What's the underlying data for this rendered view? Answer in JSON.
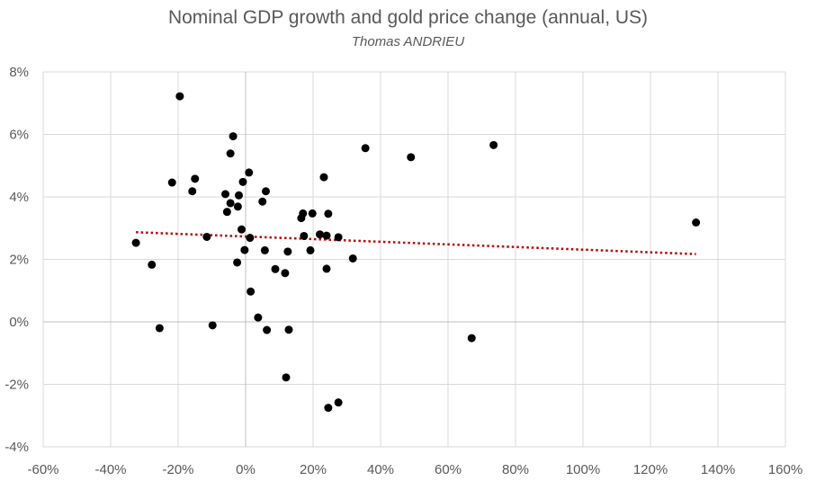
{
  "chart_data": {
    "type": "scatter",
    "title": "Nominal GDP growth and gold price change (annual, US)",
    "subtitle": "Thomas ANDRIEU",
    "xlabel": "",
    "ylabel": "",
    "xlim": [
      -0.6,
      1.6
    ],
    "ylim": [
      -0.04,
      0.08
    ],
    "x_ticks": [
      -0.6,
      -0.4,
      -0.2,
      0,
      0.2,
      0.4,
      0.6,
      0.8,
      1.0,
      1.2,
      1.4,
      1.6
    ],
    "x_tick_labels": [
      "-60%",
      "-40%",
      "-20%",
      "0%",
      "20%",
      "40%",
      "60%",
      "80%",
      "100%",
      "120%",
      "140%",
      "160%"
    ],
    "y_ticks": [
      -0.04,
      -0.02,
      0,
      0.02,
      0.04,
      0.06,
      0.08
    ],
    "y_tick_labels": [
      "-4%",
      "-2%",
      "0%",
      "2%",
      "4%",
      "6%",
      "8%"
    ],
    "grid": true,
    "legend": "none",
    "point_color": "#000000",
    "trendline": {
      "type": "linear",
      "style": "dotted",
      "color": "#c00000",
      "x": [
        -0.325,
        1.335
      ],
      "y": [
        0.0287,
        0.0217
      ]
    },
    "series": [
      {
        "points": [
          [
            -0.325,
            0.0253
          ],
          [
            -0.278,
            0.0183
          ],
          [
            -0.255,
            -0.002
          ],
          [
            -0.218,
            0.0446
          ],
          [
            -0.195,
            0.0722
          ],
          [
            -0.158,
            0.0418
          ],
          [
            -0.15,
            0.0458
          ],
          [
            -0.115,
            0.0272
          ],
          [
            -0.098,
            -0.0011
          ],
          [
            -0.06,
            0.0409
          ],
          [
            -0.055,
            0.0352
          ],
          [
            -0.045,
            0.038
          ],
          [
            -0.045,
            0.0539
          ],
          [
            -0.037,
            0.0594
          ],
          [
            -0.025,
            0.019
          ],
          [
            -0.023,
            0.0369
          ],
          [
            -0.02,
            0.0405
          ],
          [
            -0.012,
            0.0296
          ],
          [
            -0.008,
            0.0448
          ],
          [
            -0.003,
            0.023
          ],
          [
            0.01,
            0.0478
          ],
          [
            0.013,
            0.0269
          ],
          [
            0.015,
            0.0097
          ],
          [
            0.037,
            0.0014
          ],
          [
            0.05,
            0.0385
          ],
          [
            0.057,
            0.0229
          ],
          [
            0.06,
            0.0418
          ],
          [
            0.063,
            -0.0026
          ],
          [
            0.088,
            0.0169
          ],
          [
            0.117,
            0.0156
          ],
          [
            0.12,
            -0.0178
          ],
          [
            0.125,
            0.0225
          ],
          [
            0.128,
            -0.0025
          ],
          [
            0.165,
            0.0332
          ],
          [
            0.17,
            0.0347
          ],
          [
            0.173,
            0.0275
          ],
          [
            0.192,
            0.0229
          ],
          [
            0.198,
            0.0347
          ],
          [
            0.22,
            0.028
          ],
          [
            0.232,
            0.0463
          ],
          [
            0.24,
            0.0276
          ],
          [
            0.24,
            0.017
          ],
          [
            0.245,
            0.0346
          ],
          [
            0.245,
            -0.0275
          ],
          [
            0.275,
            0.0271
          ],
          [
            0.275,
            -0.0258
          ],
          [
            0.318,
            0.0203
          ],
          [
            0.355,
            0.0556
          ],
          [
            0.49,
            0.0527
          ],
          [
            0.67,
            -0.0052
          ],
          [
            0.735,
            0.0566
          ],
          [
            1.335,
            0.0318
          ]
        ]
      }
    ]
  }
}
